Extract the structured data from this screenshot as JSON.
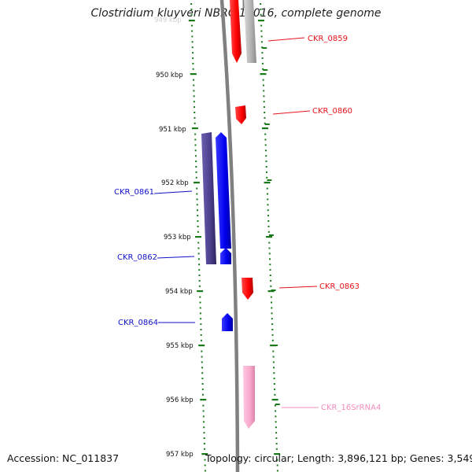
{
  "title": "Clostridium kluyveri NBRC 12016, complete genome",
  "footer": {
    "accession": "Accession: NC_011837",
    "summary": "Topology: circular; Length: 3,896,121 bp; Genes: 3,549"
  },
  "colors": {
    "tick": "#1a7a1a",
    "forward_gene": "#ff0000",
    "forward_gene_faded": "#b8b8b8",
    "reverse_gene": "#0000ee",
    "reverse_gene_dark": "#4b3f8c",
    "rrna_gene": "#f7a8cc",
    "backbone": "#808080"
  },
  "scale": {
    "unit": "kbp",
    "ticks": [
      {
        "kbp": 949,
        "label": "949 kbp",
        "faded": true
      },
      {
        "kbp": 950,
        "label": "950 kbp"
      },
      {
        "kbp": 951,
        "label": "951 kbp"
      },
      {
        "kbp": 952,
        "label": "952 kbp"
      },
      {
        "kbp": 953,
        "label": "953 kbp"
      },
      {
        "kbp": 954,
        "label": "954 kbp"
      },
      {
        "kbp": 955,
        "label": "955 kbp"
      },
      {
        "kbp": 956,
        "label": "956 kbp"
      },
      {
        "kbp": 957,
        "label": "957 kbp"
      }
    ]
  },
  "genes": [
    {
      "label": "CKR_0859",
      "strand": "forward",
      "color": "#e8131b"
    },
    {
      "label": "CKR_0860",
      "strand": "forward",
      "color": "#e8131b"
    },
    {
      "label": "CKR_0861",
      "strand": "reverse",
      "color": "#1010c8"
    },
    {
      "label": "CKR_0862",
      "strand": "reverse",
      "color": "#1010c8"
    },
    {
      "label": "CKR_0863",
      "strand": "forward",
      "color": "#e8131b"
    },
    {
      "label": "CKR_0864",
      "strand": "reverse",
      "color": "#1010c8"
    },
    {
      "label": "CKR_16SrRNA4",
      "strand": "forward",
      "color": "#f28dbd"
    }
  ]
}
